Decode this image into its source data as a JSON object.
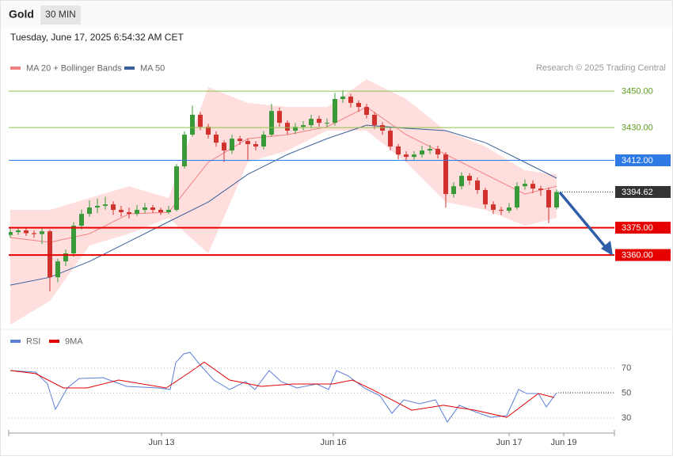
{
  "header": {
    "title": "Gold",
    "interval": "30 MIN",
    "datetime": "Tuesday, June 17, 2025 6:54:32 AM CET",
    "credit": "Research © 2025 Trading Central"
  },
  "chart_data": [
    {
      "type": "candlestick",
      "xlim": [
        -0.2,
        76.3
      ],
      "ylim": [
        3317,
        3459
      ],
      "open": [
        3371.0,
        3372.6,
        3373.5,
        3372.0,
        3371.5,
        3373.0,
        3347.8,
        3356.5,
        3360.9,
        3376.1,
        3382.6,
        3386.1,
        3387.0,
        3387.8,
        3384.8,
        3383.5,
        3382.6,
        3384.8,
        3386.1,
        3384.8,
        3383.5,
        3384.8,
        3408.7,
        3426.1,
        3437.0,
        3430.4,
        3426.1,
        3421.7,
        3417.4,
        3423.9,
        3422.6,
        3420.9,
        3419.6,
        3426.1,
        3439.1,
        3432.6,
        3428.3,
        3430.4,
        3431.3,
        3434.8,
        3432.6,
        3432.6,
        3445.7,
        3447.0,
        3443.5,
        3441.3,
        3437.0,
        3431.3,
        3428.3,
        3419.6,
        3415.2,
        3413.9,
        3415.2,
        3417.4,
        3418.3,
        3415.2,
        3393.5,
        3397.8,
        3403.5,
        3400.9,
        3395.7,
        3387.8,
        3384.8,
        3384.3,
        3386.1,
        3397.8,
        3399.1,
        3396.5,
        3395.7,
        3386.1
      ],
      "high": [
        3374.5,
        3375.0,
        3375.0,
        3373.5,
        3374.5,
        3374.0,
        3358.0,
        3363.0,
        3378.0,
        3385.0,
        3390.0,
        3391.0,
        3392.0,
        3389.5,
        3387.0,
        3386.0,
        3387.5,
        3388.5,
        3387.5,
        3386.0,
        3387.0,
        3410.0,
        3428.0,
        3442.0,
        3438.5,
        3432.0,
        3428.0,
        3423.0,
        3426.0,
        3425.5,
        3424.0,
        3422.5,
        3428.0,
        3443.0,
        3441.0,
        3434.0,
        3432.5,
        3433.5,
        3437.0,
        3436.5,
        3435.0,
        3449.0,
        3450.5,
        3448.5,
        3445.0,
        3443.0,
        3438.5,
        3433.0,
        3430.0,
        3421.0,
        3417.0,
        3417.0,
        3420.0,
        3420.5,
        3420.0,
        3416.5,
        3400.0,
        3405.5,
        3405.0,
        3402.5,
        3397.0,
        3389.5,
        3386.5,
        3388.5,
        3400.0,
        3401.5,
        3401.0,
        3398.0,
        3397.0,
        3396.0
      ],
      "low": [
        3369.5,
        3371.0,
        3370.5,
        3369.5,
        3366.0,
        3340.0,
        3345.0,
        3354.0,
        3359.0,
        3374.0,
        3381.0,
        3383.0,
        3385.0,
        3382.0,
        3381.0,
        3380.0,
        3381.5,
        3383.0,
        3383.0,
        3382.0,
        3382.5,
        3384.0,
        3407.5,
        3425.0,
        3428.5,
        3424.0,
        3419.5,
        3411.0,
        3415.5,
        3420.5,
        3412.0,
        3417.5,
        3418.0,
        3425.0,
        3430.5,
        3426.0,
        3426.5,
        3428.5,
        3429.5,
        3430.5,
        3430.5,
        3431.0,
        3443.5,
        3441.0,
        3438.5,
        3435.0,
        3429.0,
        3426.0,
        3417.5,
        3412.5,
        3411.5,
        3412.0,
        3413.5,
        3415.5,
        3413.0,
        3386.0,
        3391.5,
        3396.0,
        3398.5,
        3393.5,
        3385.5,
        3382.5,
        3382.0,
        3383.0,
        3385.0,
        3396.0,
        3394.0,
        3392.5,
        3377.5,
        3385.0
      ],
      "close": [
        3372.6,
        3373.5,
        3372.0,
        3371.5,
        3373.0,
        3347.8,
        3356.5,
        3360.9,
        3376.1,
        3382.6,
        3386.1,
        3387.0,
        3387.8,
        3384.8,
        3383.5,
        3382.6,
        3384.8,
        3386.1,
        3384.8,
        3383.5,
        3384.8,
        3408.7,
        3426.1,
        3437.0,
        3430.4,
        3426.1,
        3421.7,
        3417.4,
        3423.9,
        3422.6,
        3420.9,
        3419.6,
        3426.1,
        3439.1,
        3432.6,
        3428.3,
        3430.4,
        3431.3,
        3434.8,
        3432.6,
        3432.6,
        3445.7,
        3447.0,
        3443.5,
        3441.3,
        3437.0,
        3431.3,
        3428.3,
        3419.6,
        3415.2,
        3413.9,
        3415.2,
        3417.4,
        3418.3,
        3415.2,
        3393.5,
        3397.8,
        3403.5,
        3400.9,
        3395.7,
        3387.8,
        3384.8,
        3384.3,
        3386.1,
        3397.8,
        3399.1,
        3396.5,
        3395.7,
        3386.1,
        3394.62
      ],
      "up_color": "#3a9a3a",
      "down_color": "#d2322d",
      "series": [
        {
          "name": "MA 20 + Bollinger Bands",
          "color": "#f08080",
          "band_color": "#ffd3d3",
          "x": [
            0,
            5,
            10,
            15,
            20,
            25,
            30,
            35,
            40,
            45,
            50,
            55,
            60,
            65,
            69
          ],
          "values": [
            3369.6,
            3367.0,
            3371.7,
            3382.6,
            3383.5,
            3410.9,
            3423.9,
            3426.1,
            3430.4,
            3441.3,
            3426.1,
            3415.2,
            3404.3,
            3393.5,
            3397.8
          ],
          "upper": [
            3384.8,
            3384.8,
            3391.3,
            3397.8,
            3391.3,
            3452.2,
            3443.5,
            3441.3,
            3441.3,
            3456.5,
            3445.7,
            3428.3,
            3419.6,
            3406.5,
            3404.3
          ],
          "lower": [
            3321.7,
            3334.8,
            3365.2,
            3371.7,
            3380.4,
            3360.9,
            3410.9,
            3417.4,
            3428.3,
            3428.3,
            3410.9,
            3389.1,
            3384.8,
            3376.1,
            3380.4
          ]
        },
        {
          "name": "MA 50",
          "color": "#3a5f9a",
          "x": [
            0,
            5,
            10,
            15,
            20,
            25,
            30,
            35,
            40,
            45,
            50,
            55,
            60,
            65,
            69
          ],
          "values": [
            3343.5,
            3347.8,
            3356.5,
            3367.4,
            3378.3,
            3389.1,
            3404.3,
            3415.2,
            3423.9,
            3431.3,
            3429.6,
            3428.3,
            3421.7,
            3410.9,
            3402.2
          ]
        }
      ],
      "levels": [
        {
          "value": 3450,
          "label": "3450.00",
          "color": "#8bc34a",
          "tag": false
        },
        {
          "value": 3430,
          "label": "3430.00",
          "color": "#8bc34a",
          "tag": false
        },
        {
          "value": 3412,
          "label": "3412.00",
          "color": "#2f7be5",
          "tag": true
        },
        {
          "value": 3375,
          "label": "3375.00",
          "color": "#e60000",
          "tag": true
        },
        {
          "value": 3360,
          "label": "3360.00",
          "color": "#e60000",
          "tag": true
        }
      ],
      "last_price": 3394.62
    },
    {
      "type": "line",
      "xlim": [
        -0.2,
        76.3
      ],
      "ylim": [
        22,
        86
      ],
      "yticks": [
        30,
        50,
        70
      ],
      "xticks": [
        {
          "value": 19.1,
          "label": "Jun 13"
        },
        {
          "value": 40.8,
          "label": "Jun 16"
        },
        {
          "value": 63.0,
          "label": "Jun 17"
        },
        {
          "value": 69.9,
          "label": "Jun 19"
        }
      ],
      "series": [
        {
          "name": "RSI",
          "color": "#5b7fd6",
          "x": [
            0,
            3.2,
            4.7,
            5.7,
            7.2,
            8.7,
            11.7,
            14.7,
            18.7,
            20.2,
            20.9,
            21.9,
            22.7,
            23.9,
            25.7,
            27.7,
            29.7,
            30.9,
            32.7,
            34.2,
            36.2,
            38.7,
            40.2,
            41.2,
            42.7,
            44.7,
            46.7,
            48.2,
            49.7,
            51.7,
            53.7,
            55.2,
            56.7,
            58.7,
            60.7,
            62.7,
            64.2,
            65.2,
            66.7,
            67.7,
            69.0
          ],
          "values": [
            68.1,
            66.8,
            57.3,
            37.0,
            54.1,
            61.7,
            62.4,
            55.4,
            54.1,
            52.9,
            74.4,
            81.4,
            82.7,
            73.2,
            60.5,
            52.9,
            59.2,
            52.9,
            68.1,
            59.2,
            54.1,
            57.3,
            52.9,
            68.1,
            63.7,
            54.1,
            47.8,
            33.8,
            44.6,
            41.4,
            44.6,
            26.8,
            40.2,
            35.1,
            30.6,
            31.9,
            52.9,
            49.7,
            49.7,
            38.9,
            50.3
          ]
        },
        {
          "name": "9MA",
          "color": "#e00000",
          "x": [
            0,
            3.2,
            6.7,
            9.7,
            13.7,
            19.7,
            22.7,
            24.5,
            27.7,
            31.7,
            35.7,
            40.7,
            43.2,
            45.7,
            50.7,
            54.7,
            58.7,
            62.7,
            66.7,
            68.7
          ],
          "values": [
            68.1,
            65.6,
            54.1,
            54.1,
            60.5,
            54.1,
            66.8,
            74.9,
            60.5,
            55.4,
            57.3,
            57.3,
            60.5,
            52.9,
            36.3,
            40.2,
            36.3,
            30.6,
            49.7,
            46.5
          ]
        }
      ]
    }
  ]
}
